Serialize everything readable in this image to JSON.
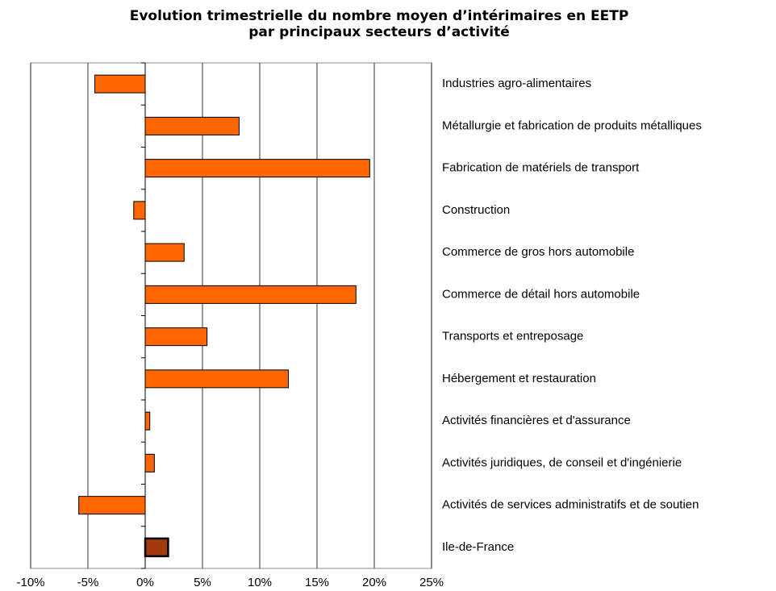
{
  "chart_data": {
    "type": "barh",
    "title": [
      "Evolution trimestrielle du nombre moyen d’intérimaires en EETP",
      "par principaux secteurs d’activité"
    ],
    "categories": [
      "Industries agro-alimentaires",
      "Métallurgie et fabrication de produits métalliques",
      "Fabrication de matériels de transport",
      "Construction",
      "Commerce de gros hors automobile",
      "Commerce de détail hors automobile",
      "Transports et entreposage",
      "Hébergement et restauration",
      "Activités financières et d'assurance",
      "Activités juridiques, de conseil et d'ingénierie",
      "Activités de services administratifs et de soutien",
      "Ile-de-France"
    ],
    "values": [
      -4.4,
      8.2,
      19.6,
      -1.0,
      3.4,
      18.4,
      5.4,
      12.5,
      0.4,
      0.8,
      -5.8,
      2.0
    ],
    "colors": [
      "#ff6600",
      "#ff6600",
      "#ff6600",
      "#ff6600",
      "#ff6600",
      "#ff6600",
      "#ff6600",
      "#ff6600",
      "#ff6600",
      "#ff6600",
      "#ff6600",
      "#a33a0c"
    ],
    "xlim": [
      -10,
      25
    ],
    "xticks": [
      {
        "value": -10,
        "label": "-10%"
      },
      {
        "value": -5,
        "label": "-5%"
      },
      {
        "value": 0,
        "label": "0%"
      },
      {
        "value": 5,
        "label": "5%"
      },
      {
        "value": 10,
        "label": "10%"
      },
      {
        "value": 15,
        "label": "15%"
      },
      {
        "value": 20,
        "label": "20%"
      },
      {
        "value": 25,
        "label": "25%"
      }
    ],
    "grid": true
  }
}
